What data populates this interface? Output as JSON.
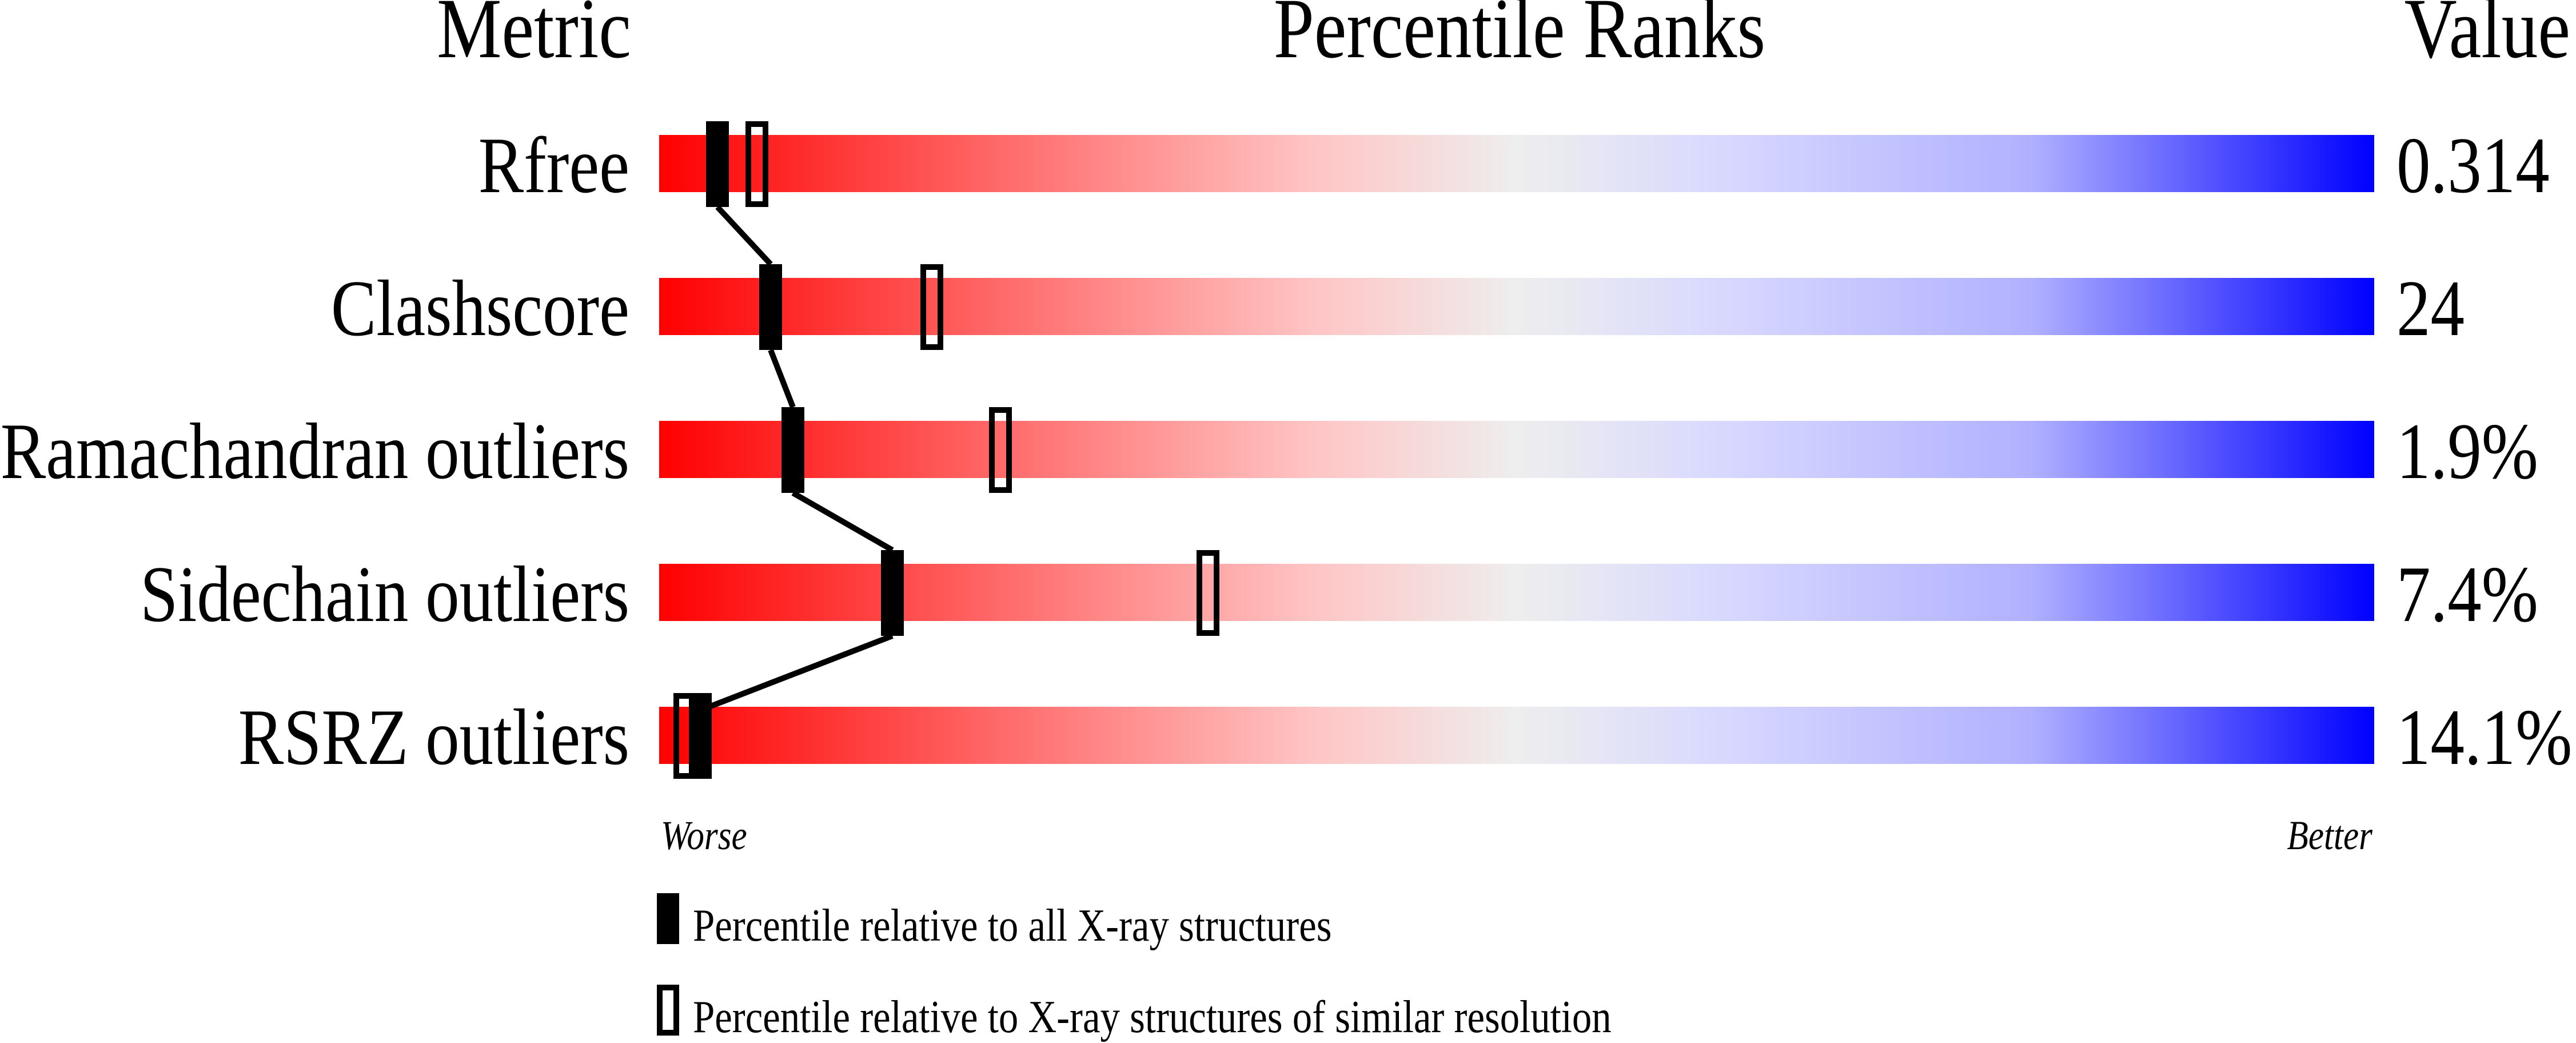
{
  "chart_data": {
    "type": "percentile-slider",
    "headers": {
      "metric": "Metric",
      "ranks": "Percentile Ranks",
      "value": "Value"
    },
    "xlim": [
      0,
      100
    ],
    "axis_labels": {
      "left": "Worse",
      "right": "Better"
    },
    "gradient_colors": [
      "#ff0000",
      "#eeeeee",
      "#0000ff"
    ],
    "rows": [
      {
        "metric": "Rfree",
        "value": "0.314",
        "percentile_all": 3.4,
        "percentile_similar": 5.7
      },
      {
        "metric": "Clashscore",
        "value": "24",
        "percentile_all": 6.5,
        "percentile_similar": 15.9
      },
      {
        "metric": "Ramachandran outliers",
        "value": "1.9%",
        "percentile_all": 7.8,
        "percentile_similar": 19.9
      },
      {
        "metric": "Sidechain outliers",
        "value": "7.4%",
        "percentile_all": 13.6,
        "percentile_similar": 32.0
      },
      {
        "metric": "RSRZ outliers",
        "value": "14.1%",
        "percentile_all": 2.4,
        "percentile_similar": 1.5
      }
    ],
    "legend": [
      {
        "marker": "filled",
        "label": "Percentile relative to all X-ray structures"
      },
      {
        "marker": "open",
        "label": "Percentile relative to X-ray structures of similar resolution"
      }
    ]
  }
}
